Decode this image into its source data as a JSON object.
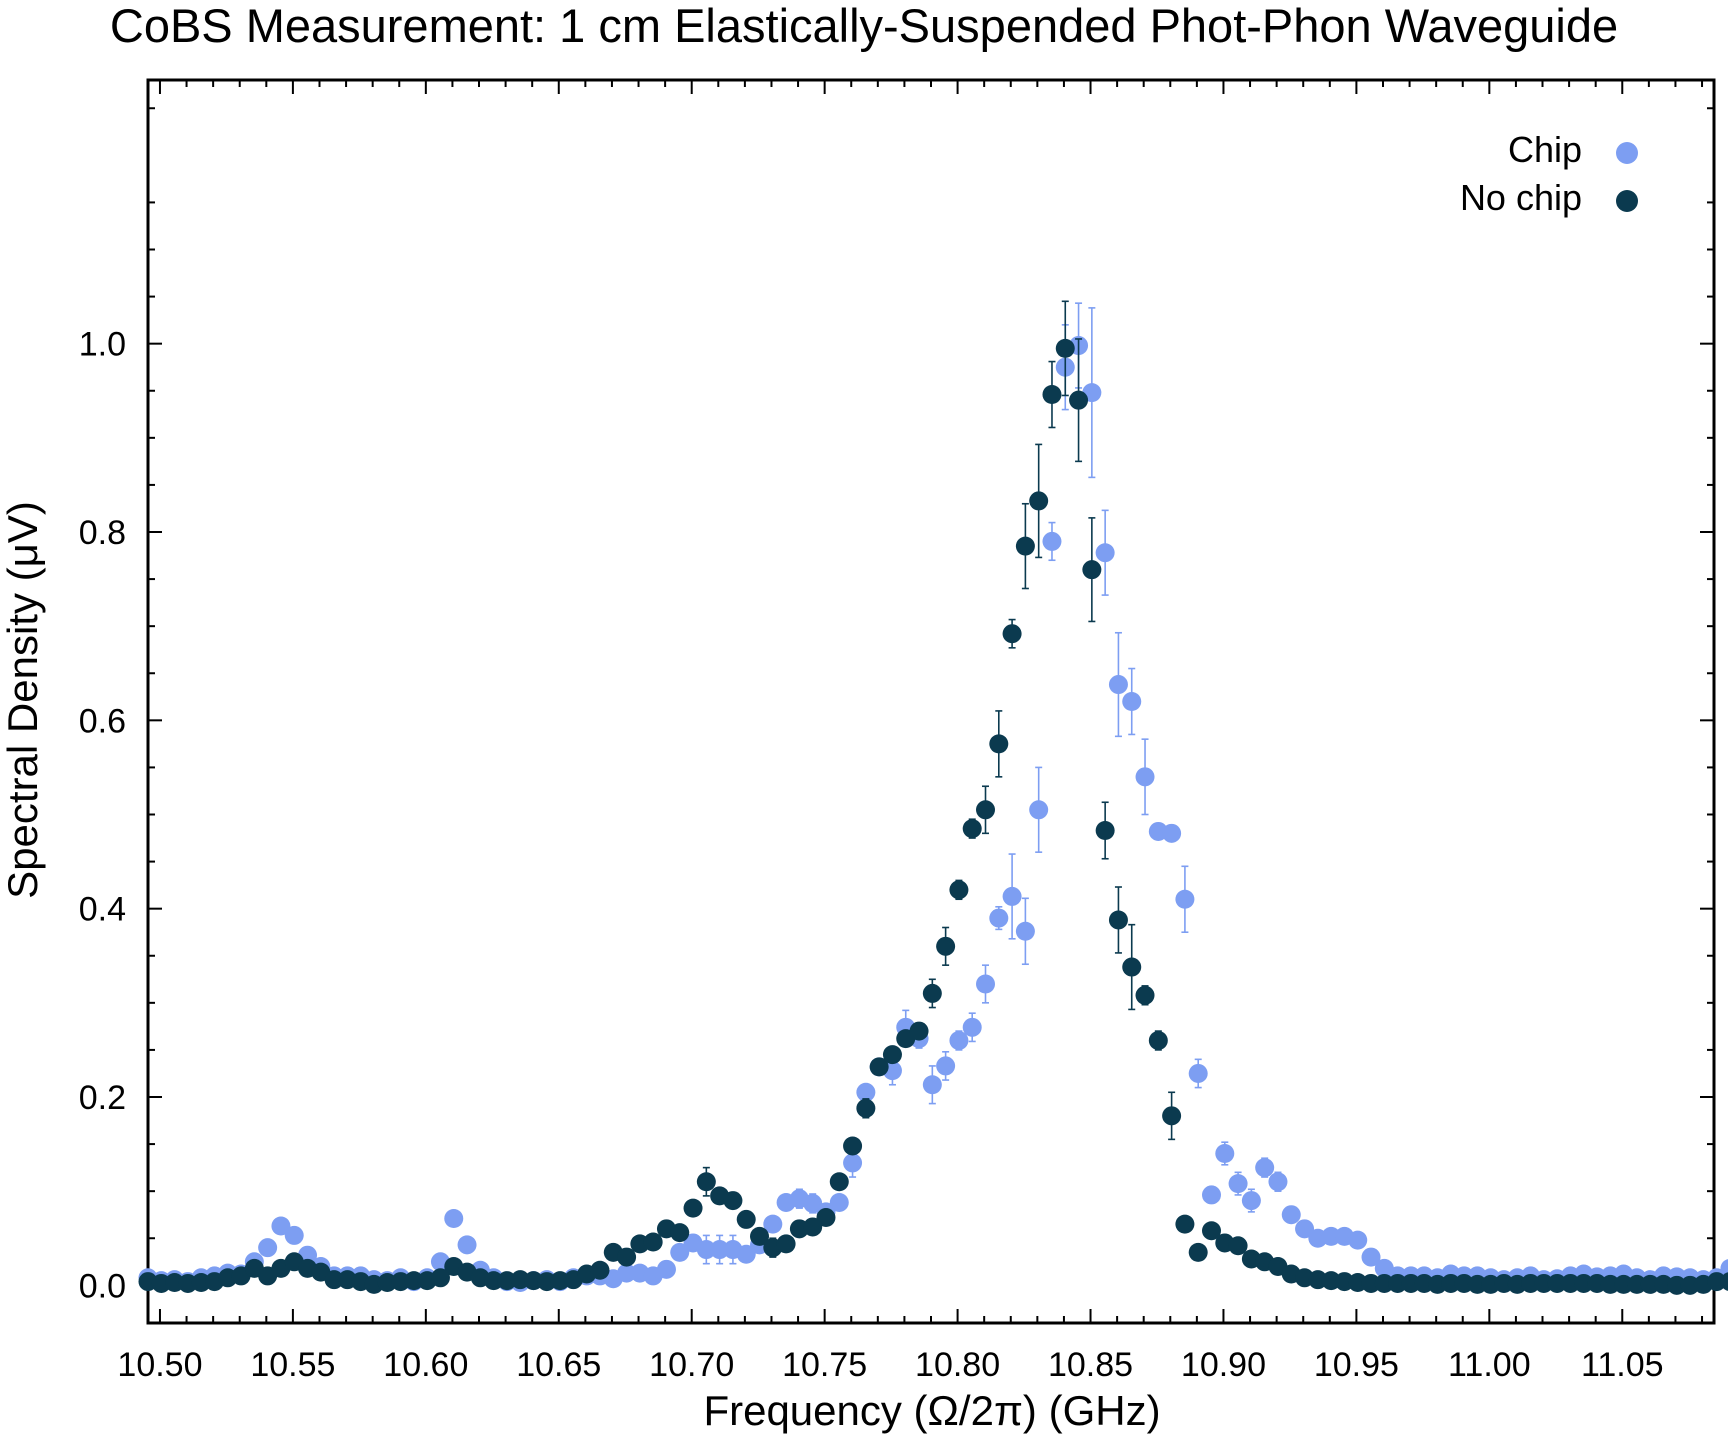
{
  "chart_data": {
    "type": "scatter",
    "title": "CoBS Measurement: 1 cm Elastically-Suspended Phot-Phon Waveguide",
    "xlabel": "Frequency (Ω/2π) (GHz)",
    "ylabel": "Spectral Density (μV)",
    "xlim": [
      10.4955,
      11.0845
    ],
    "ylim": [
      -0.04,
      1.28
    ],
    "xticks": [
      10.5,
      10.55,
      10.6,
      10.65,
      10.7,
      10.75,
      10.8,
      10.85,
      10.9,
      10.95,
      11.0,
      11.05
    ],
    "xtick_labels": [
      "10.50",
      "10.55",
      "10.60",
      "10.65",
      "10.70",
      "10.75",
      "10.80",
      "10.85",
      "10.90",
      "10.95",
      "11.00",
      "11.05"
    ],
    "yticks": [
      0.0,
      0.2,
      0.4,
      0.6,
      0.8,
      1.0
    ],
    "ytick_labels": [
      "0.0",
      "0.2",
      "0.4",
      "0.6",
      "0.8",
      "1.0"
    ],
    "grid": false,
    "legend_position": "top-right",
    "x_start": 10.4955,
    "x_step": 0.005,
    "series": [
      {
        "name": "Chip",
        "color": "#7d9ef2",
        "values": [
          0.008,
          0.005,
          0.006,
          0.004,
          0.008,
          0.01,
          0.013,
          0.012,
          0.025,
          0.04,
          0.063,
          0.053,
          0.032,
          0.02,
          0.01,
          0.01,
          0.01,
          0.006,
          0.005,
          0.008,
          0.004,
          0.008,
          0.025,
          0.071,
          0.043,
          0.016,
          0.008,
          0.004,
          0.003,
          0.005,
          0.006,
          0.004,
          0.008,
          0.01,
          0.01,
          0.007,
          0.013,
          0.013,
          0.01,
          0.017,
          0.035,
          0.045,
          0.038,
          0.038,
          0.038,
          0.033,
          0.043,
          0.065,
          0.088,
          0.092,
          0.087,
          0.078,
          0.088,
          0.13,
          0.205,
          0.232,
          0.228,
          0.274,
          0.262,
          0.213,
          0.233,
          0.26,
          0.274,
          0.32,
          0.39,
          0.413,
          0.376,
          0.505,
          0.79,
          0.975,
          0.998,
          0.948,
          0.778,
          0.638,
          0.62,
          0.54,
          0.482,
          0.48,
          0.41,
          0.225,
          0.096,
          0.14,
          0.108,
          0.09,
          0.125,
          0.11,
          0.075,
          0.06,
          0.05,
          0.052,
          0.052,
          0.048,
          0.03,
          0.018,
          0.01,
          0.01,
          0.01,
          0.008,
          0.012,
          0.01,
          0.01,
          0.008,
          0.006,
          0.008,
          0.01,
          0.006,
          0.007,
          0.01,
          0.012,
          0.009,
          0.01,
          0.012,
          0.008,
          0.006,
          0.01,
          0.009,
          0.008,
          0.006,
          0.008,
          0.018,
          0.03,
          0.03
        ],
        "errors": [
          0,
          0,
          0,
          0,
          0,
          0,
          0,
          0,
          0,
          0,
          0,
          0,
          0,
          0,
          0,
          0,
          0,
          0,
          0,
          0,
          0,
          0,
          0,
          0,
          0,
          0,
          0,
          0,
          0,
          0,
          0,
          0,
          0,
          0,
          0,
          0,
          0,
          0,
          0,
          0,
          0,
          0.008,
          0.015,
          0.015,
          0.015,
          0,
          0,
          0,
          0,
          0.01,
          0.01,
          0,
          0,
          0.015,
          0,
          0,
          0.015,
          0.018,
          0.01,
          0.02,
          0.015,
          0.01,
          0.015,
          0.02,
          0.012,
          0.045,
          0.035,
          0.045,
          0.02,
          0.045,
          0.045,
          0.09,
          0.045,
          0.055,
          0.035,
          0.04,
          0,
          0,
          0.035,
          0.015,
          0,
          0.012,
          0.012,
          0.012,
          0.01,
          0.01,
          0,
          0,
          0,
          0,
          0,
          0,
          0,
          0,
          0,
          0,
          0,
          0,
          0,
          0,
          0,
          0,
          0,
          0,
          0,
          0,
          0,
          0,
          0,
          0,
          0,
          0,
          0,
          0,
          0,
          0,
          0,
          0,
          0,
          0,
          0,
          0
        ]
      },
      {
        "name": "No chip",
        "color": "#0b3a4f",
        "values": [
          0.004,
          0.002,
          0.003,
          0.002,
          0.003,
          0.004,
          0.008,
          0.01,
          0.018,
          0.01,
          0.018,
          0.025,
          0.018,
          0.014,
          0.006,
          0.006,
          0.004,
          0.001,
          0.003,
          0.004,
          0.005,
          0.005,
          0.008,
          0.02,
          0.014,
          0.008,
          0.005,
          0.005,
          0.006,
          0.005,
          0.004,
          0.005,
          0.006,
          0.012,
          0.016,
          0.035,
          0.03,
          0.044,
          0.046,
          0.06,
          0.056,
          0.082,
          0.11,
          0.095,
          0.09,
          0.07,
          0.052,
          0.04,
          0.044,
          0.06,
          0.062,
          0.072,
          0.11,
          0.148,
          0.188,
          0.232,
          0.245,
          0.262,
          0.27,
          0.31,
          0.36,
          0.42,
          0.485,
          0.505,
          0.575,
          0.692,
          0.785,
          0.833,
          0.946,
          0.995,
          0.94,
          0.76,
          0.483,
          0.388,
          0.338,
          0.308,
          0.26,
          0.18,
          0.065,
          0.035,
          0.058,
          0.045,
          0.042,
          0.028,
          0.025,
          0.02,
          0.012,
          0.008,
          0.006,
          0.005,
          0.004,
          0.003,
          0.002,
          0.002,
          0.002,
          0.002,
          0.002,
          0.001,
          0.002,
          0.002,
          0.001,
          0.001,
          0.002,
          0.001,
          0.002,
          0.002,
          0.002,
          0.002,
          0.002,
          0.002,
          0.001,
          0.001,
          0.001,
          0.001,
          0.001,
          0.0,
          0.0,
          0.001,
          0.004,
          0.004,
          0.002
        ],
        "errors": [
          0,
          0,
          0,
          0,
          0,
          0,
          0,
          0,
          0,
          0,
          0,
          0,
          0,
          0,
          0,
          0,
          0,
          0,
          0,
          0,
          0,
          0,
          0,
          0,
          0,
          0,
          0,
          0,
          0,
          0,
          0,
          0,
          0,
          0,
          0,
          0,
          0,
          0,
          0,
          0,
          0,
          0,
          0.015,
          0,
          0,
          0,
          0,
          0.01,
          0,
          0,
          0,
          0,
          0,
          0,
          0.01,
          0,
          0,
          0,
          0,
          0.015,
          0.02,
          0.01,
          0.01,
          0.025,
          0.035,
          0.015,
          0.045,
          0.06,
          0.035,
          0.05,
          0.065,
          0.055,
          0.03,
          0.035,
          0.045,
          0.01,
          0.01,
          0.025,
          0,
          0,
          0,
          0,
          0,
          0,
          0,
          0,
          0,
          0,
          0,
          0,
          0,
          0,
          0,
          0,
          0,
          0,
          0,
          0,
          0,
          0,
          0,
          0,
          0,
          0,
          0,
          0,
          0,
          0,
          0,
          0,
          0,
          0,
          0,
          0,
          0,
          0,
          0,
          0,
          0,
          0,
          0
        ]
      }
    ]
  }
}
